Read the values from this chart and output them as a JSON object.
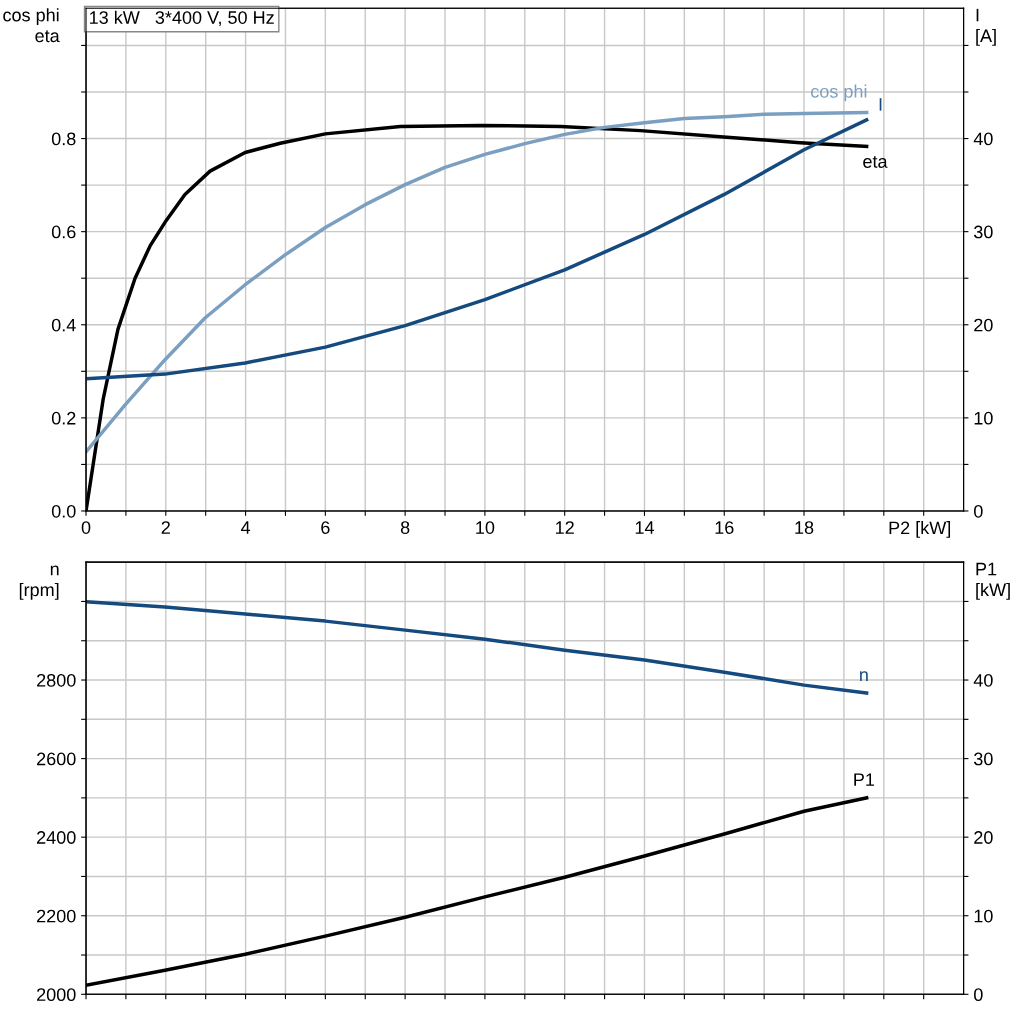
{
  "chart_data": [
    {
      "type": "line",
      "title": "13 kW   3*400 V, 50 Hz",
      "xlabel": "P2 [kW]",
      "ylabel": "cos phi\neta",
      "y2label": "I\n[A]",
      "xlim": [
        0,
        22
      ],
      "xticks": [
        0,
        {
          "value": 1,
          "label": null
        },
        2,
        {
          "value": 3,
          "label": null
        },
        4,
        {
          "value": 5,
          "label": null
        },
        6,
        {
          "value": 7,
          "label": null
        },
        8,
        {
          "value": 9,
          "label": null
        },
        10,
        {
          "value": 11,
          "label": null
        },
        12,
        {
          "value": 13,
          "label": null
        },
        14,
        {
          "value": 15,
          "label": null
        },
        16,
        {
          "value": 17,
          "label": null
        },
        18,
        {
          "value": 19,
          "label": null
        },
        {
          "value": 20,
          "label": null
        },
        {
          "value": 21,
          "label": null
        }
      ],
      "ylim": [
        0,
        1.08
      ],
      "yticks": [
        {
          "value": 0,
          "label": "0.0"
        },
        {
          "value": 0.1,
          "label": null
        },
        0.2,
        {
          "value": 0.3,
          "label": null
        },
        0.4,
        {
          "value": 0.5,
          "label": null
        },
        0.6,
        {
          "value": 0.7,
          "label": null
        },
        0.8,
        {
          "value": 0.9,
          "label": null
        },
        {
          "value": 1.0,
          "label": null
        }
      ],
      "y2lim": [
        0,
        54
      ],
      "y2ticks": [
        0,
        {
          "value": 5,
          "label": null
        },
        10,
        {
          "value": 15,
          "label": null
        },
        20,
        {
          "value": 25,
          "label": null
        },
        30,
        {
          "value": 35,
          "label": null
        },
        40,
        {
          "value": 45,
          "label": null
        },
        {
          "value": 50,
          "label": null
        }
      ],
      "grid": true,
      "legend": false,
      "series": [
        {
          "name": "eta",
          "color": "#000000",
          "axis": "y",
          "x": [
            0,
            0.43,
            0.8,
            1.23,
            1.61,
            1.98,
            2.48,
            3.11,
            3.99,
            4.87,
            6.0,
            7.88,
            9.89,
            11.9,
            13.9,
            15.9,
            17.9,
            19.57
          ],
          "values": [
            0,
            0.24,
            0.39,
            0.5,
            0.57,
            0.62,
            0.68,
            0.73,
            0.77,
            0.79,
            0.81,
            0.826,
            0.828,
            0.826,
            0.817,
            0.804,
            0.791,
            0.783
          ]
        },
        {
          "name": "cos phi",
          "color": "#7b9fc0",
          "axis": "y",
          "x": [
            0,
            0.98,
            1.98,
            2.99,
            3.99,
            4.99,
            6.0,
            7.0,
            8.0,
            9.0,
            10.0,
            11.0,
            12.0,
            13.0,
            14.0,
            15.0,
            16.0,
            17.0,
            18.0,
            19.57
          ],
          "values": [
            0.127,
            0.228,
            0.325,
            0.415,
            0.486,
            0.55,
            0.609,
            0.658,
            0.701,
            0.738,
            0.766,
            0.789,
            0.809,
            0.824,
            0.834,
            0.843,
            0.847,
            0.852,
            0.854,
            0.856
          ]
        },
        {
          "name": "I",
          "color": "#154a7e",
          "axis": "y2",
          "x": [
            0,
            1.98,
            3.99,
            6.0,
            8.0,
            10.0,
            12.0,
            14.0,
            16.0,
            18.0,
            19.57
          ],
          "values": [
            14.2,
            14.7,
            15.9,
            17.6,
            19.9,
            22.7,
            25.9,
            29.7,
            34.0,
            38.8,
            42.0
          ]
        }
      ]
    },
    {
      "type": "line",
      "ylabel": "n\n[rpm]",
      "y2label": "P1\n[kW]",
      "tick_labels": "y",
      "xlim": [
        0,
        22
      ],
      "xticks": [
        0,
        1,
        2,
        3,
        4,
        5,
        6,
        7,
        8,
        9,
        10,
        11,
        12,
        13,
        14,
        15,
        16,
        17,
        18,
        19,
        20,
        21
      ],
      "ylim": [
        2000,
        3100
      ],
      "yticks": [
        2000,
        {
          "value": 2100,
          "label": null
        },
        2200,
        {
          "value": 2300,
          "label": null
        },
        2400,
        {
          "value": 2500,
          "label": null
        },
        2600,
        {
          "value": 2700,
          "label": null
        },
        2800,
        {
          "value": 2900,
          "label": null
        },
        {
          "value": 3000,
          "label": null
        }
      ],
      "y2lim": [
        0,
        55
      ],
      "y2ticks": [
        0,
        {
          "value": 5,
          "label": null
        },
        10,
        {
          "value": 15,
          "label": null
        },
        20,
        {
          "value": 25,
          "label": null
        },
        30,
        {
          "value": 35,
          "label": null
        },
        40,
        {
          "value": 45,
          "label": null
        },
        {
          "value": 50,
          "label": null
        }
      ],
      "grid": true,
      "legend": false,
      "series": [
        {
          "name": "n",
          "color": "#154a7e",
          "axis": "y",
          "x": [
            0,
            1.98,
            3.99,
            6.0,
            8.0,
            10.0,
            12.0,
            14.0,
            16.0,
            18.0,
            19.57
          ],
          "values": [
            2999,
            2986,
            2968,
            2950,
            2927,
            2904,
            2876,
            2851,
            2820,
            2787,
            2767
          ]
        },
        {
          "name": "P1",
          "color": "#000000",
          "axis": "y2",
          "x": [
            0,
            1.98,
            3.99,
            6.0,
            8.0,
            10.0,
            12.0,
            14.0,
            16.0,
            18.0,
            19.57
          ],
          "values": [
            1.15,
            3.06,
            5.1,
            7.4,
            9.8,
            12.4,
            14.9,
            17.6,
            20.4,
            23.3,
            25.0
          ]
        }
      ]
    }
  ]
}
